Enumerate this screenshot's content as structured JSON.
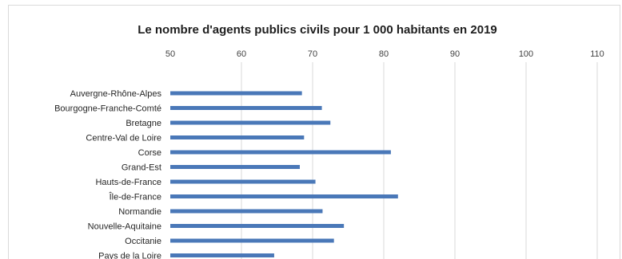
{
  "chart_data": {
    "type": "bar",
    "orientation": "horizontal",
    "title": "Le nombre d'agents publics civils pour 1 000 habitants en 2019",
    "xlabel": "",
    "ylabel": "",
    "xlim": [
      50,
      110
    ],
    "xticks": [
      "50",
      "60",
      "70",
      "80",
      "90",
      "100",
      "110"
    ],
    "grid": true,
    "legend": "none",
    "categories": [
      "Auvergne-Rhône-Alpes",
      "Bourgogne-Franche-Comté",
      "Bretagne",
      "Centre-Val de Loire",
      "Corse",
      "Grand-Est",
      "Hauts-de-France",
      "Île-de-France",
      "Normandie",
      "Nouvelle-Aquitaine",
      "Occitanie",
      "Pays de la Loire"
    ],
    "values": [
      68.5,
      71.3,
      72.5,
      68.8,
      81.0,
      68.2,
      70.4,
      82.0,
      71.4,
      74.4,
      73.0,
      64.6
    ],
    "colors": {
      "bar": "#4a78b8",
      "grid": "#d9d9d9"
    }
  }
}
